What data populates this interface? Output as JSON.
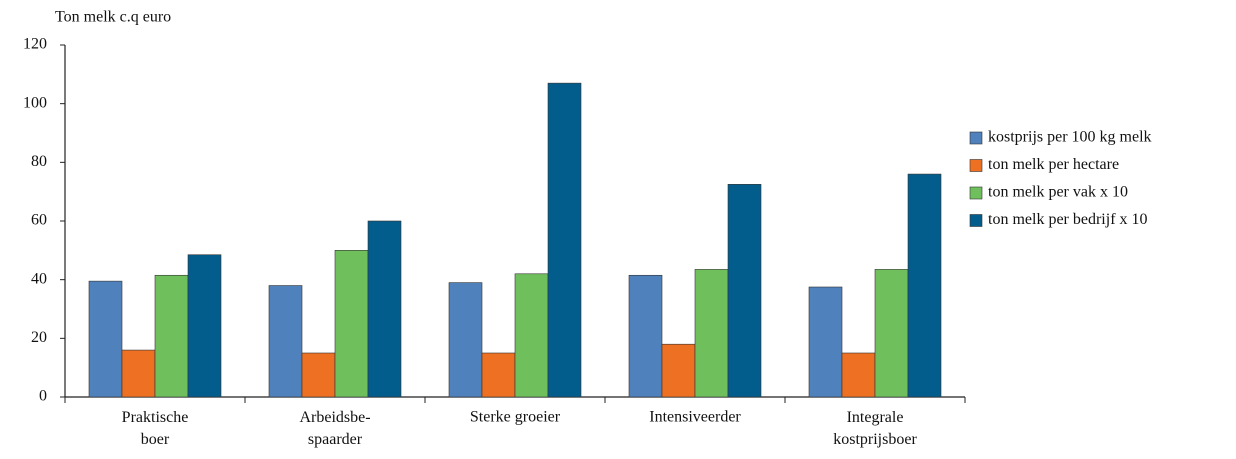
{
  "chart_data": {
    "type": "bar",
    "title": "Ton melk c.q euro",
    "categories": [
      "Praktische\nboer",
      "Arbeidsbe-\nspaarder",
      "Sterke groeier",
      "Intensiveerder",
      "Integrale\nkostprijsboer"
    ],
    "series": [
      {
        "name": "kostprijs per 100 kg melk",
        "color": "#4f81bd",
        "values": [
          39.5,
          38,
          39,
          41.5,
          37.5
        ]
      },
      {
        "name": "ton melk per hectare",
        "color": "#ee7022",
        "values": [
          16,
          15,
          15,
          18,
          15
        ]
      },
      {
        "name": "ton melk per vak x 10",
        "color": "#6fc05c",
        "values": [
          41.5,
          50,
          42,
          43.5,
          43.5
        ]
      },
      {
        "name": "ton melk per bedrijf x 10",
        "color": "#035d8c",
        "values": [
          48.5,
          60,
          107,
          72.5,
          76
        ]
      }
    ],
    "ylim": [
      0,
      120
    ],
    "yticks": [
      0,
      20,
      40,
      60,
      80,
      100,
      120
    ],
    "grid": false,
    "legend": "right"
  }
}
